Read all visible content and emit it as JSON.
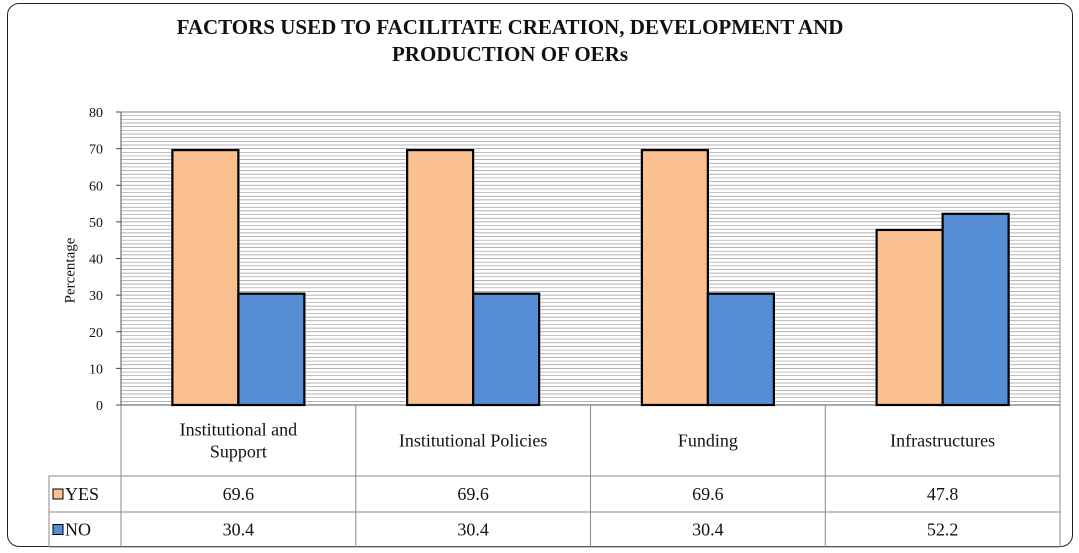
{
  "chart_data": {
    "type": "bar",
    "title": "FACTORS USED TO FACILITATE CREATION, DEVELOPMENT AND PRODUCTION OF OERs",
    "ylabel": "Percentage",
    "xlabel": "",
    "ylim": [
      0,
      80
    ],
    "yticks": [
      0,
      10,
      20,
      30,
      40,
      50,
      60,
      70,
      80
    ],
    "categories": [
      "Institutional and Support",
      "Institutional Policies",
      "Funding",
      "Infrastructures"
    ],
    "category_lines": [
      [
        "Institutional and",
        "Support"
      ],
      [
        "Institutional Policies"
      ],
      [
        "Funding"
      ],
      [
        "Infrastructures"
      ]
    ],
    "series": [
      {
        "name": "YES",
        "values": [
          69.6,
          69.6,
          69.6,
          47.8
        ],
        "color": "#fac090"
      },
      {
        "name": "NO",
        "values": [
          30.4,
          30.4,
          30.4,
          52.2
        ],
        "color": "#558ed5"
      }
    ],
    "value_labels": [
      [
        "69.6",
        "69.6",
        "69.6",
        "47.8"
      ],
      [
        "30.4",
        "30.4",
        "30.4",
        "52.2"
      ]
    ],
    "grid": true,
    "legend": "data-table"
  }
}
